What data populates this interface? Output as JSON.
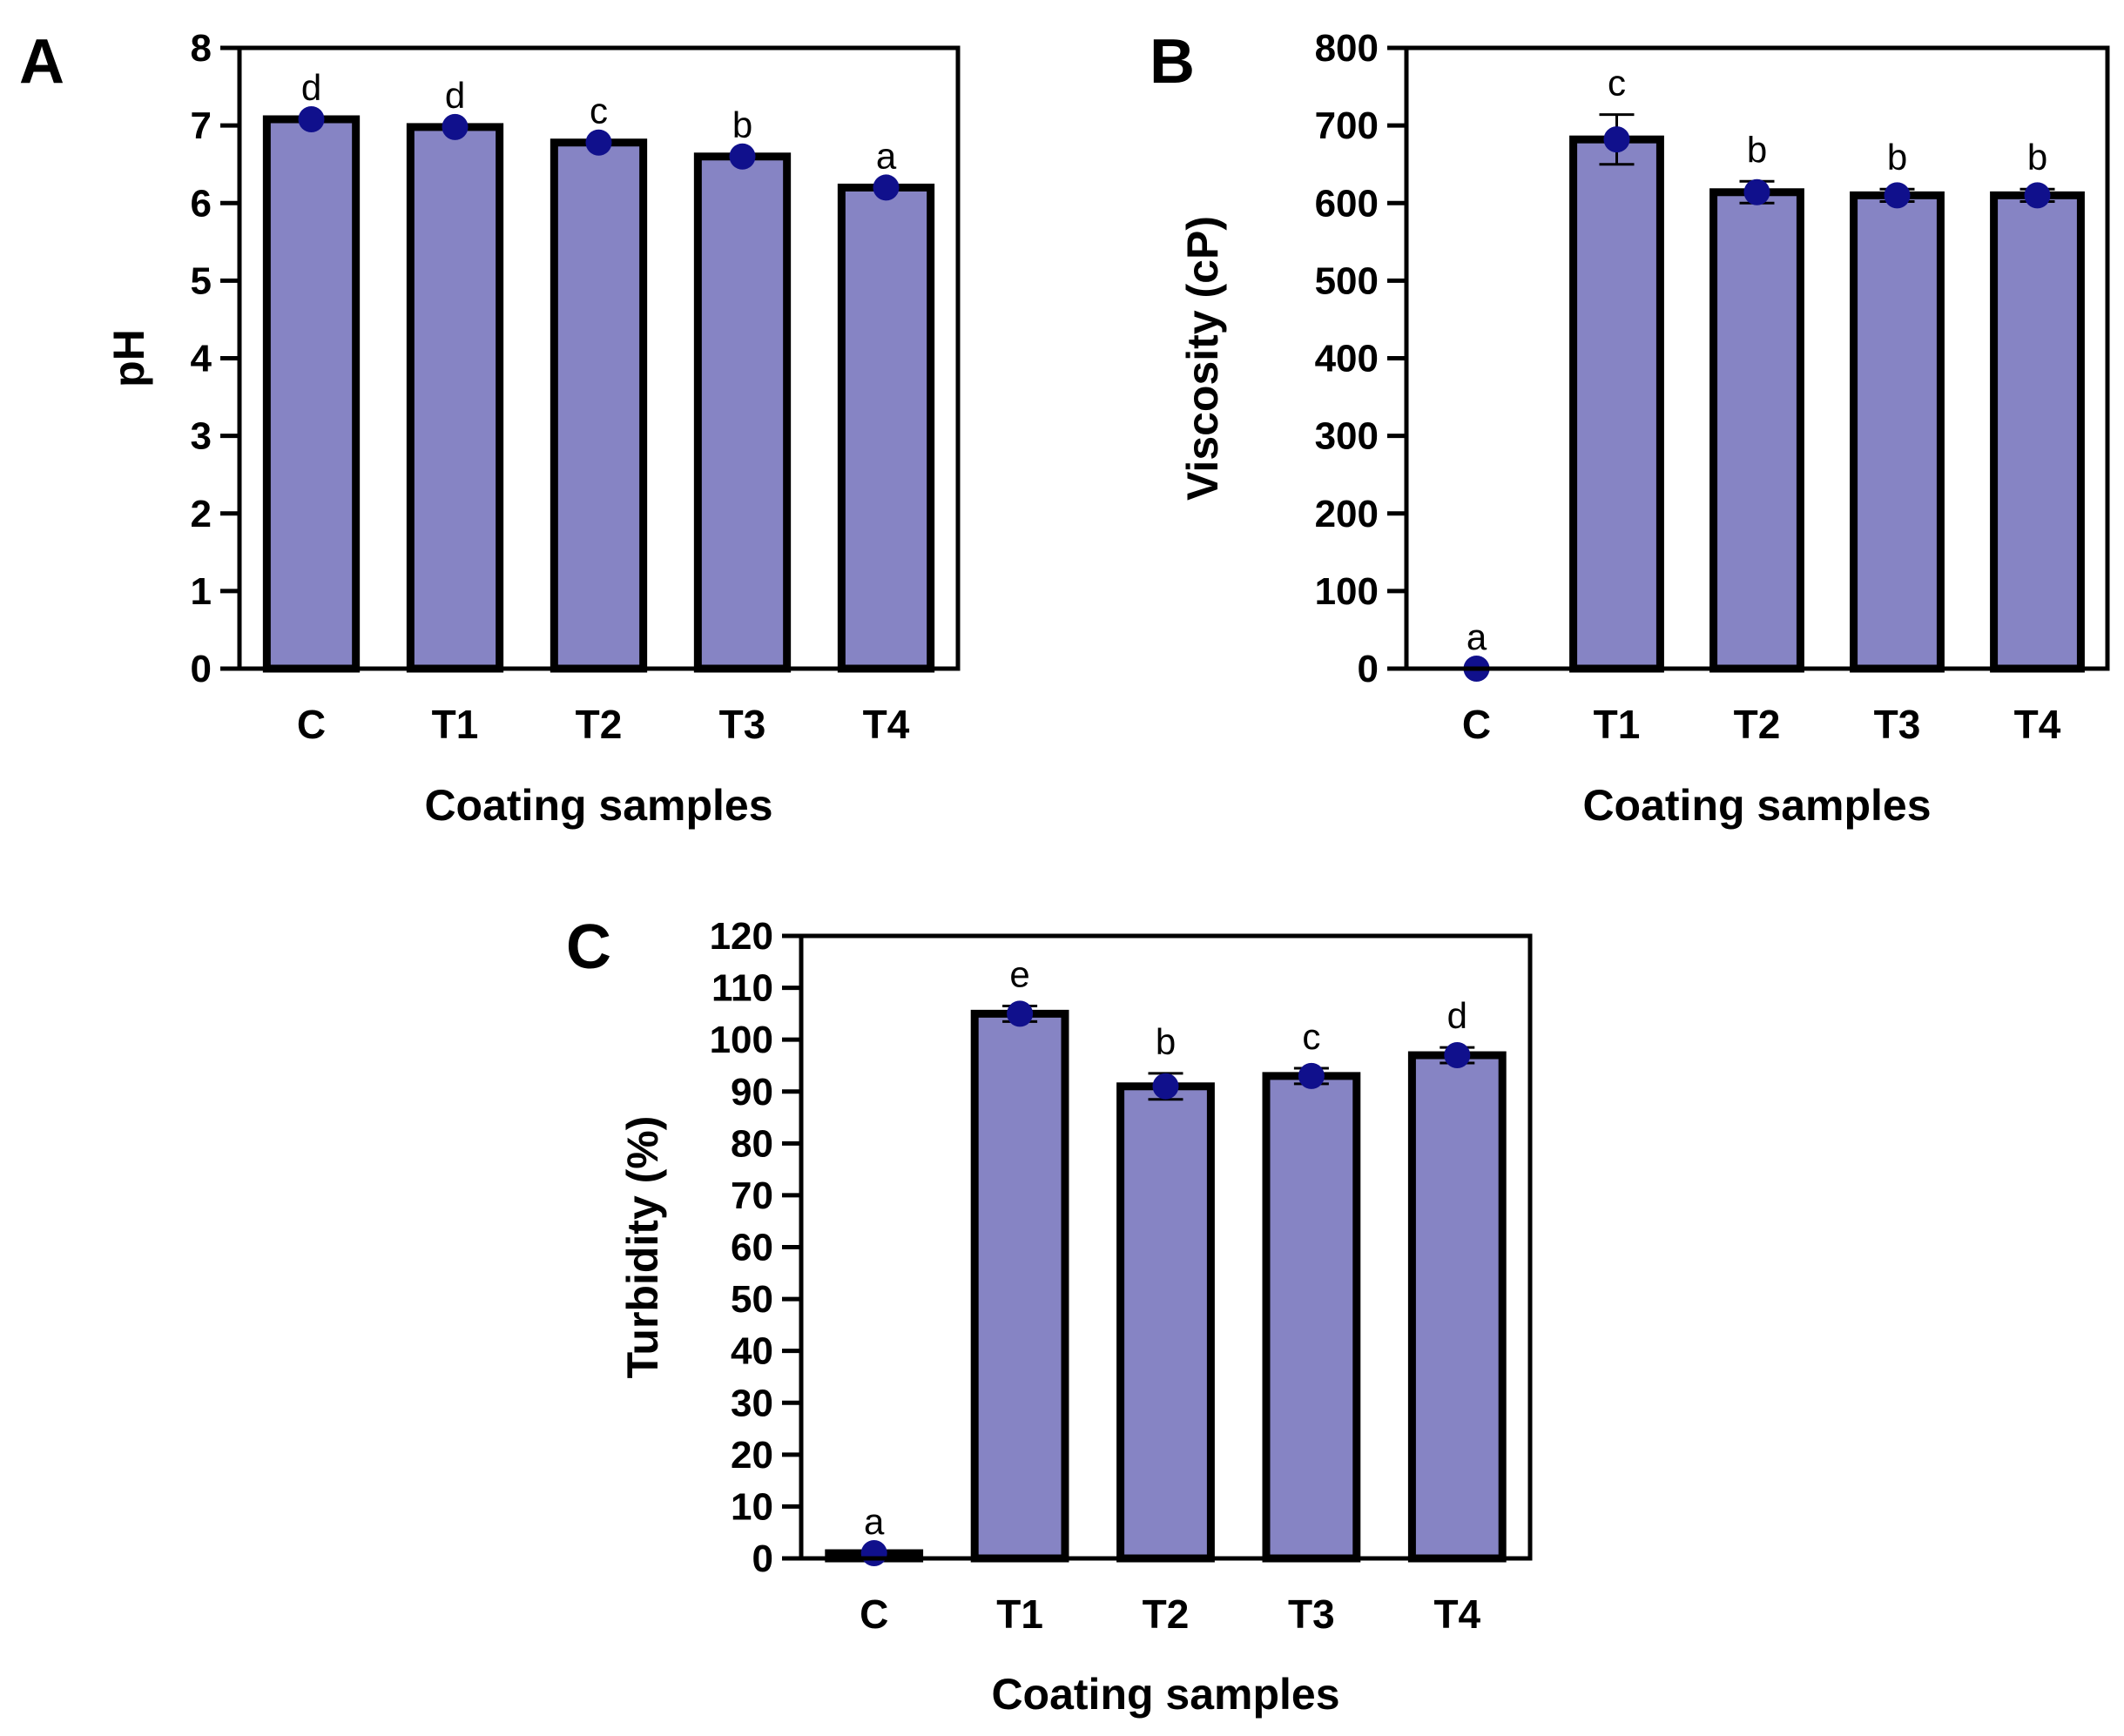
{
  "colors": {
    "bar_fill": "#8684c4",
    "point": "#10108c",
    "axis": "#000000"
  },
  "chart_data": [
    {
      "panel": "A",
      "type": "bar",
      "categories": [
        "C",
        "T1",
        "T2",
        "T3",
        "T4"
      ],
      "values": [
        7.08,
        6.98,
        6.78,
        6.6,
        6.2
      ],
      "errors": [
        0,
        0,
        0,
        0,
        0
      ],
      "significance": [
        "d",
        "d",
        "c",
        "b",
        "a"
      ],
      "xlabel": "Coating samples",
      "ylabel": "pH",
      "ylim": [
        0,
        8
      ],
      "yticks": [
        "0",
        "1",
        "2",
        "3",
        "4",
        "5",
        "6",
        "7",
        "8"
      ]
    },
    {
      "panel": "B",
      "type": "bar",
      "categories": [
        "C",
        "T1",
        "T2",
        "T3",
        "T4"
      ],
      "values": [
        0,
        682,
        614,
        610,
        610
      ],
      "errors": [
        0,
        32,
        14,
        8,
        8
      ],
      "significance": [
        "a",
        "c",
        "b",
        "b",
        "b"
      ],
      "xlabel": "Coating samples",
      "ylabel": "Viscosity (cP)",
      "ylim": [
        0,
        800
      ],
      "yticks": [
        "0",
        "100",
        "200",
        "300",
        "400",
        "500",
        "600",
        "700",
        "800"
      ]
    },
    {
      "panel": "C",
      "type": "bar",
      "categories": [
        "C",
        "T1",
        "T2",
        "T3",
        "T4"
      ],
      "values": [
        1,
        105,
        91,
        93,
        97
      ],
      "errors": [
        0,
        1.5,
        2.5,
        1.5,
        1.5
      ],
      "significance": [
        "a",
        "e",
        "b",
        "c",
        "d"
      ],
      "xlabel": "Coating samples",
      "ylabel": "Turbidity (%)",
      "ylim": [
        0,
        120
      ],
      "yticks": [
        "0",
        "10",
        "20",
        "30",
        "40",
        "50",
        "60",
        "70",
        "80",
        "90",
        "100",
        "110",
        "120"
      ]
    }
  ]
}
